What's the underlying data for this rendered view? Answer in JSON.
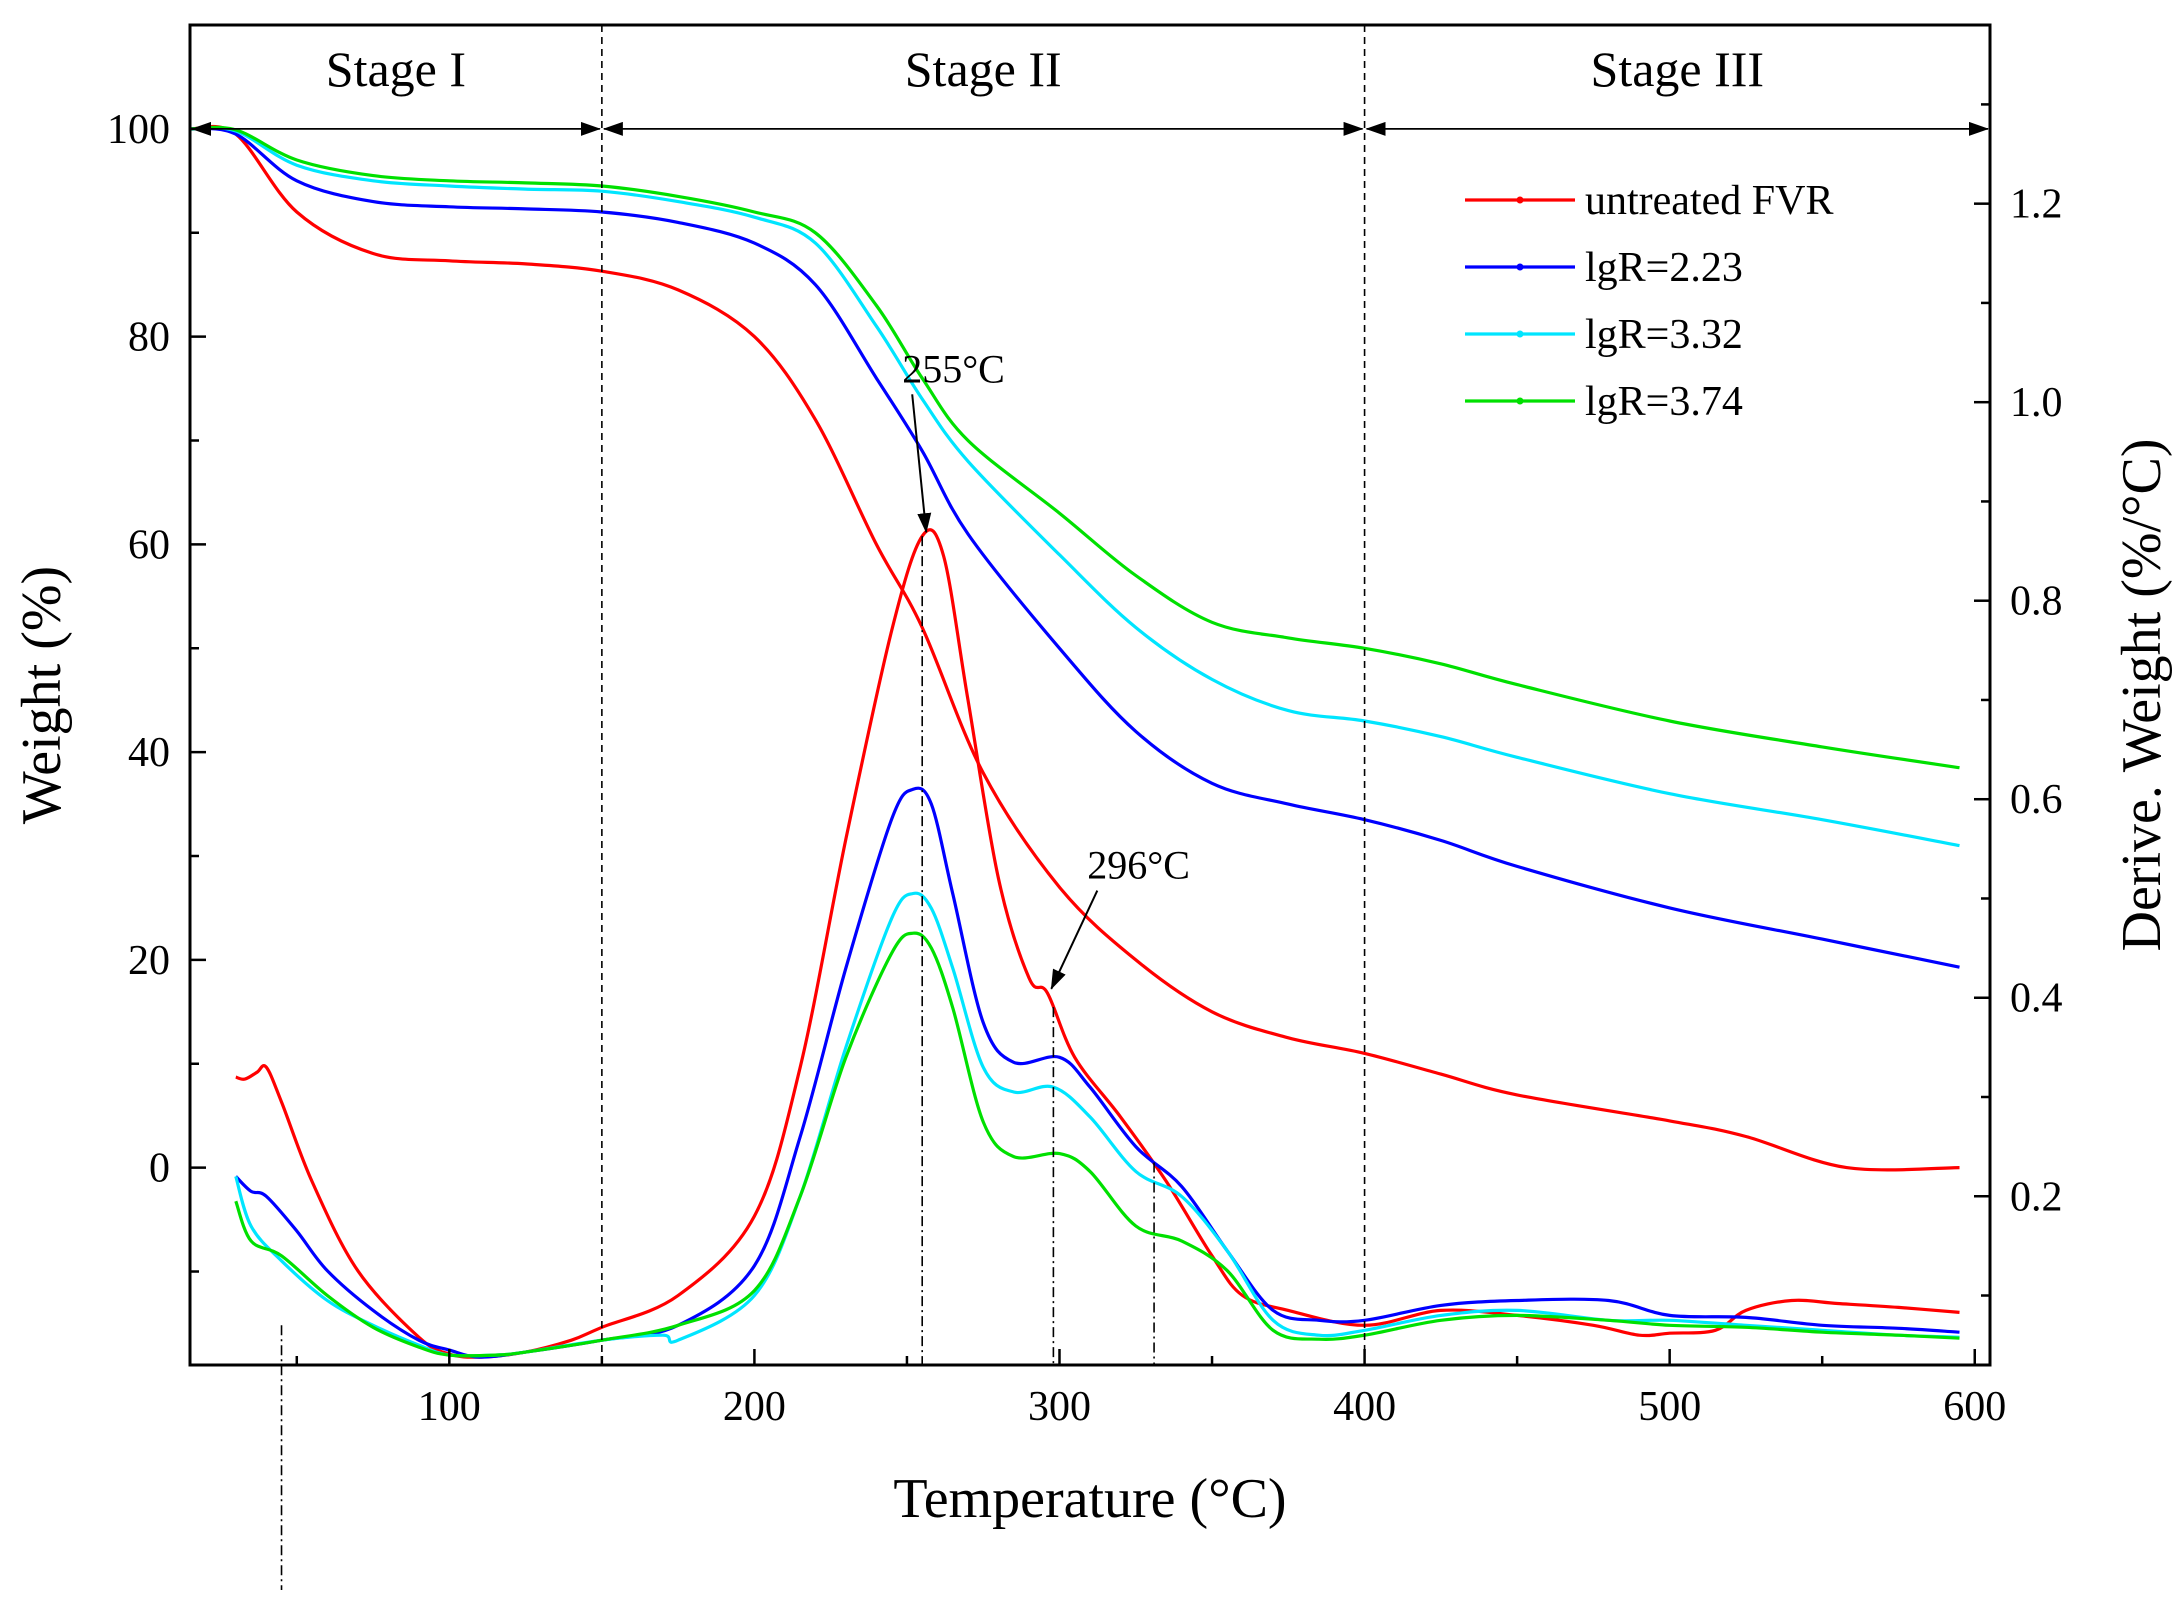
{
  "chart_data": {
    "type": "line",
    "xlabel": "Temperature  (°C)",
    "ylabel_left": "Weight (%)",
    "ylabel_right": "Derive. Weight (%/°C)",
    "xlim": [
      15,
      605
    ],
    "ylim_left": [
      -19,
      110
    ],
    "ylim_right": [
      0.03,
      1.38
    ],
    "x_ticks": [
      100,
      200,
      300,
      400,
      500,
      600
    ],
    "y_left_ticks": [
      0,
      20,
      40,
      60,
      80,
      100
    ],
    "y_right_ticks": [
      "0.2",
      "0.4",
      "0.6",
      "0.8",
      "1.0",
      "1.2"
    ],
    "stages": [
      {
        "label": "Stage I",
        "start": 15,
        "end": 150
      },
      {
        "label": "Stage II",
        "start": 150,
        "end": 400
      },
      {
        "label": "Stage III",
        "start": 400,
        "end": 605
      }
    ],
    "annotations": [
      {
        "text": "255°C",
        "x": 255
      },
      {
        "text": "296°C",
        "x": 296
      }
    ],
    "legend_position": "top-right",
    "series_tg": [
      {
        "name": "untreated FVR",
        "color": "#ff0000",
        "points": [
          [
            15,
            100
          ],
          [
            30,
            99.5
          ],
          [
            50,
            92
          ],
          [
            75,
            88
          ],
          [
            100,
            87.3
          ],
          [
            125,
            87
          ],
          [
            150,
            86.3
          ],
          [
            175,
            84.5
          ],
          [
            200,
            80
          ],
          [
            220,
            72
          ],
          [
            240,
            60
          ],
          [
            255,
            52
          ],
          [
            275,
            38
          ],
          [
            300,
            27
          ],
          [
            325,
            20
          ],
          [
            350,
            15
          ],
          [
            375,
            12.5
          ],
          [
            400,
            11
          ],
          [
            425,
            9
          ],
          [
            450,
            7
          ],
          [
            500,
            4.5
          ],
          [
            525,
            3
          ],
          [
            558,
            0
          ],
          [
            595,
            0
          ]
        ]
      },
      {
        "name": "lgR=2.23",
        "color": "#0000ff",
        "points": [
          [
            15,
            100
          ],
          [
            30,
            99.5
          ],
          [
            50,
            95
          ],
          [
            75,
            93
          ],
          [
            100,
            92.5
          ],
          [
            125,
            92.3
          ],
          [
            150,
            92
          ],
          [
            175,
            91
          ],
          [
            200,
            89
          ],
          [
            220,
            85
          ],
          [
            240,
            76
          ],
          [
            255,
            69
          ],
          [
            270,
            61
          ],
          [
            300,
            50
          ],
          [
            325,
            42
          ],
          [
            350,
            37
          ],
          [
            375,
            35
          ],
          [
            400,
            33.5
          ],
          [
            425,
            31.5
          ],
          [
            450,
            29
          ],
          [
            500,
            25
          ],
          [
            550,
            22
          ],
          [
            595,
            19.3
          ]
        ]
      },
      {
        "name": "lgR=3.32",
        "color": "#00e5ff",
        "points": [
          [
            15,
            100
          ],
          [
            30,
            99.8
          ],
          [
            50,
            96.5
          ],
          [
            75,
            95
          ],
          [
            100,
            94.5
          ],
          [
            125,
            94.2
          ],
          [
            150,
            94
          ],
          [
            175,
            93
          ],
          [
            200,
            91.5
          ],
          [
            220,
            89
          ],
          [
            240,
            81
          ],
          [
            255,
            74
          ],
          [
            270,
            68
          ],
          [
            300,
            59
          ],
          [
            325,
            52
          ],
          [
            350,
            47
          ],
          [
            375,
            44
          ],
          [
            400,
            43
          ],
          [
            425,
            41.5
          ],
          [
            450,
            39.5
          ],
          [
            500,
            36
          ],
          [
            550,
            33.5
          ],
          [
            595,
            31
          ]
        ]
      },
      {
        "name": "lgR=3.74",
        "color": "#00e000",
        "points": [
          [
            15,
            100
          ],
          [
            30,
            99.9
          ],
          [
            50,
            97
          ],
          [
            75,
            95.5
          ],
          [
            100,
            95
          ],
          [
            125,
            94.8
          ],
          [
            150,
            94.5
          ],
          [
            175,
            93.5
          ],
          [
            200,
            92
          ],
          [
            220,
            90
          ],
          [
            240,
            83
          ],
          [
            255,
            76
          ],
          [
            270,
            70
          ],
          [
            300,
            63
          ],
          [
            325,
            57
          ],
          [
            350,
            52.5
          ],
          [
            375,
            51
          ],
          [
            400,
            50
          ],
          [
            425,
            48.5
          ],
          [
            450,
            46.5
          ],
          [
            500,
            43
          ],
          [
            550,
            40.5
          ],
          [
            595,
            38.5
          ]
        ]
      }
    ],
    "series_dtg": [
      {
        "name": "untreated FVR",
        "color": "#ff0000",
        "points": [
          [
            30,
            0.32
          ],
          [
            33,
            0.318
          ],
          [
            37,
            0.325
          ],
          [
            40,
            0.33
          ],
          [
            45,
            0.295
          ],
          [
            55,
            0.215
          ],
          [
            70,
            0.125
          ],
          [
            90,
            0.058
          ],
          [
            100,
            0.041
          ],
          [
            110,
            0.038
          ],
          [
            125,
            0.043
          ],
          [
            140,
            0.055
          ],
          [
            150,
            0.068
          ],
          [
            175,
            0.1
          ],
          [
            200,
            0.18
          ],
          [
            215,
            0.33
          ],
          [
            230,
            0.56
          ],
          [
            245,
            0.77
          ],
          [
            255,
            0.865
          ],
          [
            262,
            0.845
          ],
          [
            270,
            0.7
          ],
          [
            280,
            0.52
          ],
          [
            290,
            0.42
          ],
          [
            296,
            0.405
          ],
          [
            305,
            0.34
          ],
          [
            320,
            0.28
          ],
          [
            335,
            0.215
          ],
          [
            350,
            0.14
          ],
          [
            360,
            0.1
          ],
          [
            375,
            0.085
          ],
          [
            400,
            0.07
          ],
          [
            425,
            0.085
          ],
          [
            450,
            0.08
          ],
          [
            475,
            0.07
          ],
          [
            490,
            0.06
          ],
          [
            500,
            0.062
          ],
          [
            515,
            0.065
          ],
          [
            525,
            0.085
          ],
          [
            540,
            0.095
          ],
          [
            555,
            0.092
          ],
          [
            575,
            0.088
          ],
          [
            595,
            0.083
          ]
        ]
      },
      {
        "name": "lgR=2.23",
        "color": "#0000ff",
        "points": [
          [
            30,
            0.22
          ],
          [
            35,
            0.205
          ],
          [
            40,
            0.2
          ],
          [
            50,
            0.165
          ],
          [
            60,
            0.125
          ],
          [
            75,
            0.085
          ],
          [
            90,
            0.055
          ],
          [
            100,
            0.045
          ],
          [
            110,
            0.038
          ],
          [
            125,
            0.043
          ],
          [
            150,
            0.055
          ],
          [
            175,
            0.07
          ],
          [
            200,
            0.13
          ],
          [
            215,
            0.26
          ],
          [
            230,
            0.43
          ],
          [
            245,
            0.58
          ],
          [
            252,
            0.61
          ],
          [
            258,
            0.595
          ],
          [
            265,
            0.505
          ],
          [
            275,
            0.375
          ],
          [
            285,
            0.335
          ],
          [
            300,
            0.34
          ],
          [
            310,
            0.31
          ],
          [
            325,
            0.25
          ],
          [
            340,
            0.21
          ],
          [
            355,
            0.145
          ],
          [
            370,
            0.085
          ],
          [
            385,
            0.075
          ],
          [
            400,
            0.075
          ],
          [
            425,
            0.09
          ],
          [
            450,
            0.095
          ],
          [
            480,
            0.095
          ],
          [
            500,
            0.08
          ],
          [
            525,
            0.078
          ],
          [
            550,
            0.07
          ],
          [
            575,
            0.067
          ],
          [
            595,
            0.063
          ]
        ]
      },
      {
        "name": "lgR=3.32",
        "color": "#00e5ff",
        "points": [
          [
            30,
            0.22
          ],
          [
            35,
            0.17
          ],
          [
            45,
            0.135
          ],
          [
            60,
            0.095
          ],
          [
            75,
            0.07
          ],
          [
            90,
            0.05
          ],
          [
            100,
            0.04
          ],
          [
            115,
            0.04
          ],
          [
            125,
            0.043
          ],
          [
            150,
            0.055
          ],
          [
            170,
            0.06
          ],
          [
            175,
            0.055
          ],
          [
            200,
            0.1
          ],
          [
            215,
            0.2
          ],
          [
            230,
            0.35
          ],
          [
            245,
            0.48
          ],
          [
            252,
            0.505
          ],
          [
            258,
            0.49
          ],
          [
            265,
            0.43
          ],
          [
            275,
            0.33
          ],
          [
            285,
            0.305
          ],
          [
            298,
            0.31
          ],
          [
            310,
            0.28
          ],
          [
            325,
            0.225
          ],
          [
            340,
            0.2
          ],
          [
            355,
            0.145
          ],
          [
            370,
            0.075
          ],
          [
            385,
            0.06
          ],
          [
            400,
            0.065
          ],
          [
            425,
            0.08
          ],
          [
            450,
            0.085
          ],
          [
            480,
            0.075
          ],
          [
            500,
            0.075
          ],
          [
            525,
            0.07
          ],
          [
            550,
            0.065
          ],
          [
            575,
            0.06
          ],
          [
            595,
            0.058
          ]
        ]
      },
      {
        "name": "lgR=3.74",
        "color": "#00e000",
        "points": [
          [
            30,
            0.195
          ],
          [
            35,
            0.155
          ],
          [
            45,
            0.14
          ],
          [
            60,
            0.1
          ],
          [
            75,
            0.068
          ],
          [
            90,
            0.048
          ],
          [
            100,
            0.04
          ],
          [
            115,
            0.04
          ],
          [
            125,
            0.043
          ],
          [
            150,
            0.055
          ],
          [
            175,
            0.07
          ],
          [
            200,
            0.105
          ],
          [
            215,
            0.2
          ],
          [
            230,
            0.34
          ],
          [
            245,
            0.445
          ],
          [
            252,
            0.465
          ],
          [
            258,
            0.45
          ],
          [
            265,
            0.39
          ],
          [
            275,
            0.275
          ],
          [
            285,
            0.24
          ],
          [
            300,
            0.243
          ],
          [
            310,
            0.225
          ],
          [
            325,
            0.17
          ],
          [
            340,
            0.155
          ],
          [
            355,
            0.125
          ],
          [
            370,
            0.065
          ],
          [
            385,
            0.056
          ],
          [
            400,
            0.06
          ],
          [
            425,
            0.075
          ],
          [
            450,
            0.08
          ],
          [
            480,
            0.075
          ],
          [
            500,
            0.07
          ],
          [
            525,
            0.068
          ],
          [
            550,
            0.063
          ],
          [
            575,
            0.06
          ],
          [
            595,
            0.057
          ]
        ]
      }
    ]
  }
}
